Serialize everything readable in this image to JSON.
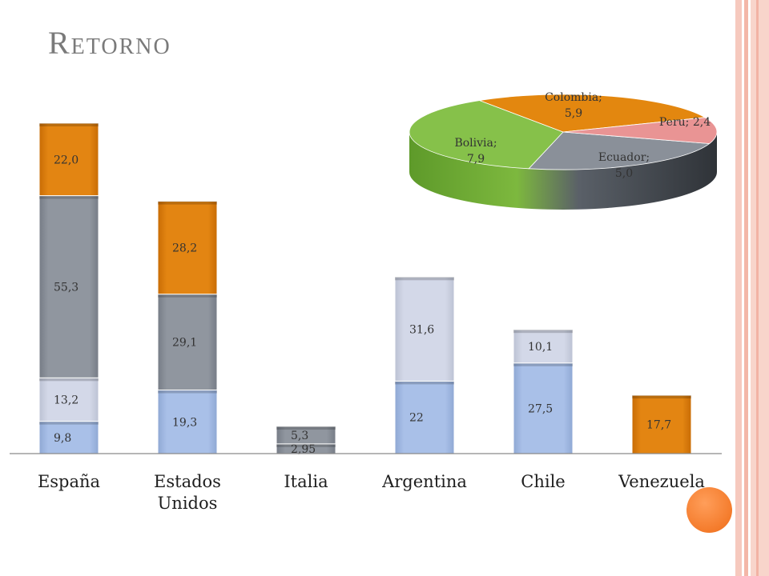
{
  "slide": {
    "title": "Retorno"
  },
  "colors": {
    "orange": "#E07E0A",
    "dark_gray": "#8C929C",
    "light_lavender": "#D0D6E6",
    "light_blue": "#A6BDE6",
    "green": "#7DB83E",
    "pink": "#E89090",
    "accent_circle": "#F47B2B",
    "stripe_pink": "#F6C9BE"
  },
  "chart_data": [
    {
      "type": "bar",
      "stacked": true,
      "categories": [
        "España",
        "Estados Unidos",
        "Italia",
        "Argentina",
        "Chile",
        "Venezuela"
      ],
      "category_labels": [
        [
          "España"
        ],
        [
          "Estados",
          "Unidos"
        ],
        [
          "Italia"
        ],
        [
          "Argentina"
        ],
        [
          "Chile"
        ],
        [
          "Venezuela"
        ]
      ],
      "stacks": [
        [
          {
            "value": 9.8,
            "label": "9,8",
            "color": "light_blue"
          },
          {
            "value": 13.2,
            "label": "13,2",
            "color": "light_lavender"
          },
          {
            "value": 55.3,
            "label": "55,3",
            "color": "dark_gray"
          },
          {
            "value": 22.0,
            "label": "22,0",
            "color": "orange"
          }
        ],
        [
          {
            "value": 19.3,
            "label": "19,3",
            "color": "light_blue"
          },
          {
            "value": 29.1,
            "label": "29,1",
            "color": "dark_gray"
          },
          {
            "value": 28.2,
            "label": "28,2",
            "color": "orange"
          }
        ],
        [
          {
            "value": 2.95,
            "label": "2,95",
            "color": "dark_gray"
          },
          {
            "value": 5.3,
            "label": "5,3",
            "color": "dark_gray"
          }
        ],
        [
          {
            "value": 22,
            "label": "22",
            "color": "light_blue"
          },
          {
            "value": 31.6,
            "label": "31,6",
            "color": "light_lavender"
          }
        ],
        [
          {
            "value": 27.5,
            "label": "27,5",
            "color": "light_blue"
          },
          {
            "value": 10.1,
            "label": "10,1",
            "color": "light_lavender"
          }
        ],
        [
          {
            "value": 17.7,
            "label": "17,7",
            "color": "orange"
          }
        ]
      ],
      "ylim": [
        0,
        100.3
      ],
      "grid": false,
      "legend": "none"
    },
    {
      "type": "pie",
      "style": "3d",
      "slices": [
        {
          "name": "Ecuador",
          "value": 5.0,
          "label": [
            "Ecuador;",
            "5,0"
          ],
          "color": "dark_gray"
        },
        {
          "name": "Bolivia",
          "value": 7.9,
          "label": [
            "Bolivia;",
            "7,9"
          ],
          "color": "green"
        },
        {
          "name": "Colombia",
          "value": 5.9,
          "label": [
            "Colombia;",
            "5,9"
          ],
          "color": "orange"
        },
        {
          "name": "Peru",
          "value": 2.4,
          "label": [
            "Peru; 2,4"
          ],
          "color": "pink"
        }
      ]
    }
  ]
}
